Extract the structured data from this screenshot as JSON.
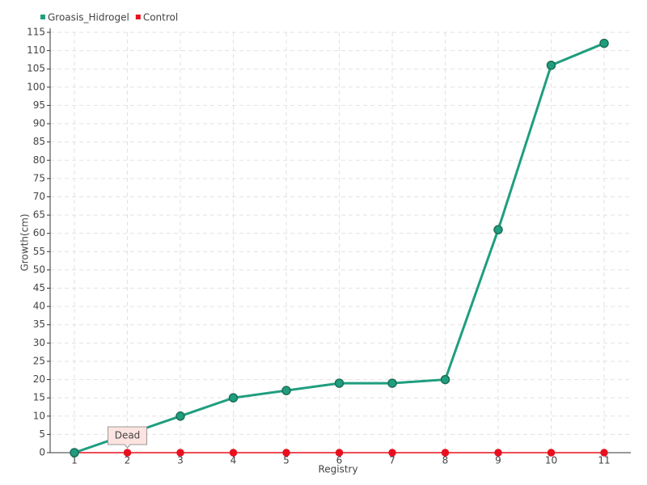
{
  "chart_data": {
    "type": "line",
    "x_label": "Registry",
    "y_label": "Growth(cm)",
    "categories": [
      "1",
      "2",
      "3",
      "4",
      "5",
      "6",
      "7",
      "8",
      "9",
      "10",
      "11"
    ],
    "series": [
      {
        "name": "Groasis_Hidrogel",
        "color": "#1f9e7f",
        "values": [
          0,
          5,
          10,
          15,
          17,
          19,
          19,
          20,
          61,
          106,
          112
        ]
      },
      {
        "name": "Control",
        "color": "#e8101e",
        "values": [
          0,
          0,
          0,
          0,
          0,
          0,
          0,
          0,
          0,
          0,
          0
        ]
      }
    ],
    "annotations": [
      {
        "text": "Dead",
        "series": 1,
        "index": 1
      }
    ],
    "ylim": [
      0,
      115
    ],
    "yticks": [
      0,
      5,
      10,
      15,
      20,
      25,
      30,
      35,
      40,
      45,
      50,
      55,
      60,
      65,
      70,
      75,
      80,
      85,
      90,
      95,
      100,
      105,
      110,
      115
    ],
    "grid": true,
    "legend": "top-left"
  }
}
